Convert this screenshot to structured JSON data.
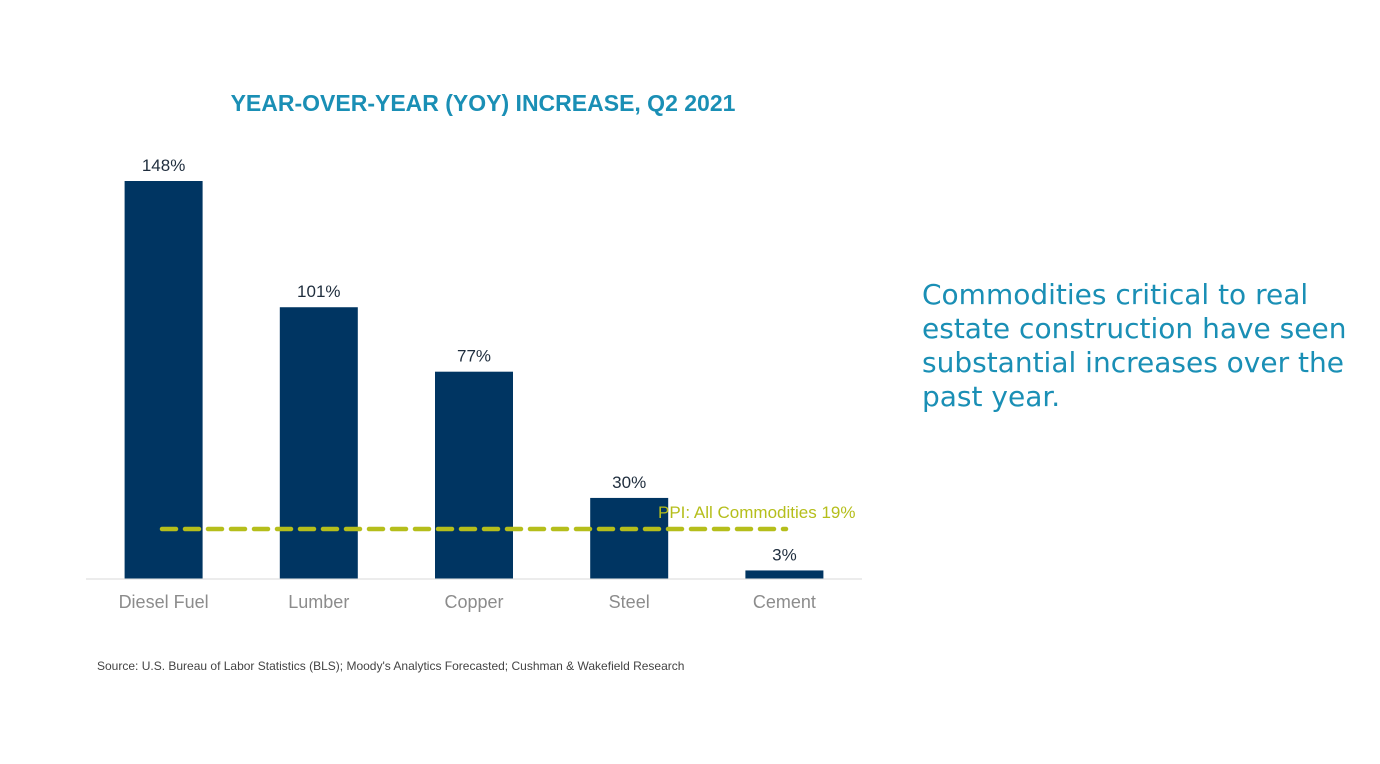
{
  "chart_data": {
    "type": "bar",
    "title": "YEAR-OVER-YEAR (YOY) INCREASE, Q2 2021",
    "categories": [
      "Diesel Fuel",
      "Lumber",
      "Copper",
      "Steel",
      "Cement"
    ],
    "values": [
      148,
      101,
      77,
      30,
      3
    ],
    "data_labels": [
      "148%",
      "101%",
      "77%",
      "30%",
      "3%"
    ],
    "ylim": [
      0,
      148
    ],
    "xlabel": "",
    "ylabel": "",
    "grid": false,
    "reference_line": {
      "label": "PPI: All Commodities 19%",
      "value": 19,
      "style": "dashed"
    }
  },
  "colors": {
    "bar": "#003562",
    "title": "#1a8fb5",
    "reference_line": "#b5be1b",
    "tick_label": "#8c8c8c",
    "baseline": "#e6e6e6"
  },
  "side_text": "Commodities critical to real estate construction have seen substantial increases over the past year.",
  "source": "Source: U.S. Bureau of Labor Statistics (BLS); Moody's Analytics Forecasted; Cushman & Wakefield Research"
}
